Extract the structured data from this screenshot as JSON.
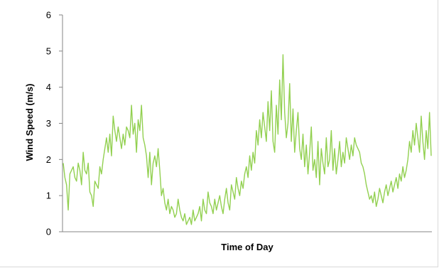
{
  "chart_data": {
    "type": "line",
    "title": "",
    "xlabel": "Time of Day",
    "ylabel": "Wind Speed (m/s)",
    "ylim": [
      0,
      6
    ],
    "yticks": [
      "0",
      "1",
      "2",
      "3",
      "4",
      "5",
      "6"
    ],
    "x_tick_labels_shown": false,
    "grid": false,
    "legend": "none",
    "line_color": "#92d050",
    "series": [
      {
        "values": [
          1.9,
          1.5,
          1.3,
          0.6,
          1.6,
          1.7,
          1.8,
          1.5,
          1.4,
          1.9,
          1.7,
          1.3,
          2.2,
          1.7,
          1.6,
          1.9,
          1.1,
          1.0,
          0.7,
          1.4,
          1.3,
          1.2,
          1.8,
          1.6,
          2.0,
          2.3,
          2.6,
          2.2,
          2.7,
          2.1,
          3.2,
          2.8,
          2.5,
          2.9,
          2.6,
          2.3,
          2.7,
          2.4,
          2.9,
          2.8,
          2.6,
          3.5,
          2.7,
          3.0,
          2.2,
          3.1,
          2.8,
          3.5,
          2.6,
          2.4,
          2.1,
          1.5,
          2.2,
          1.3,
          1.9,
          2.1,
          1.8,
          2.3,
          1.7,
          1.0,
          1.2,
          0.8,
          0.6,
          0.9,
          0.5,
          0.7,
          0.6,
          0.4,
          0.5,
          0.9,
          0.6,
          0.4,
          0.3,
          0.5,
          0.2,
          0.3,
          0.4,
          0.2,
          0.6,
          0.3,
          0.4,
          0.5,
          0.7,
          0.3,
          0.9,
          0.6,
          0.5,
          1.1,
          0.8,
          0.7,
          0.5,
          0.9,
          0.6,
          0.8,
          1.0,
          0.7,
          0.5,
          0.9,
          1.2,
          0.8,
          0.6,
          1.3,
          1.1,
          0.9,
          1.5,
          1.2,
          1.0,
          1.4,
          1.2,
          1.6,
          1.8,
          1.5,
          2.1,
          1.7,
          2.2,
          1.9,
          2.8,
          2.4,
          3.1,
          2.6,
          3.3,
          2.9,
          2.5,
          3.6,
          2.8,
          3.9,
          2.5,
          2.2,
          3.5,
          2.7,
          4.2,
          3.1,
          4.9,
          3.3,
          2.6,
          3.0,
          4.1,
          2.5,
          3.4,
          2.2,
          2.8,
          3.3,
          2.3,
          2.0,
          2.7,
          1.8,
          2.4,
          1.6,
          2.2,
          2.9,
          1.7,
          2.0,
          1.5,
          2.5,
          1.3,
          2.3,
          1.9,
          1.6,
          2.6,
          1.8,
          2.0,
          2.8,
          1.7,
          2.3,
          1.6,
          2.0,
          2.5,
          1.8,
          2.2,
          1.9,
          2.6,
          2.3,
          2.0,
          2.4,
          2.1,
          2.6,
          2.4,
          2.3,
          2.2,
          1.9,
          1.8,
          1.6,
          1.3,
          1.1,
          0.9,
          1.0,
          0.8,
          1.1,
          0.7,
          0.9,
          1.2,
          1.0,
          0.8,
          1.1,
          1.3,
          1.0,
          1.2,
          1.4,
          1.1,
          1.3,
          1.5,
          1.2,
          1.6,
          1.4,
          1.8,
          1.5,
          1.7,
          2.0,
          2.5,
          2.2,
          2.8,
          2.4,
          3.0,
          2.6,
          2.2,
          3.2,
          2.5,
          2.0,
          2.8,
          2.3,
          3.3,
          2.1
        ]
      }
    ]
  }
}
